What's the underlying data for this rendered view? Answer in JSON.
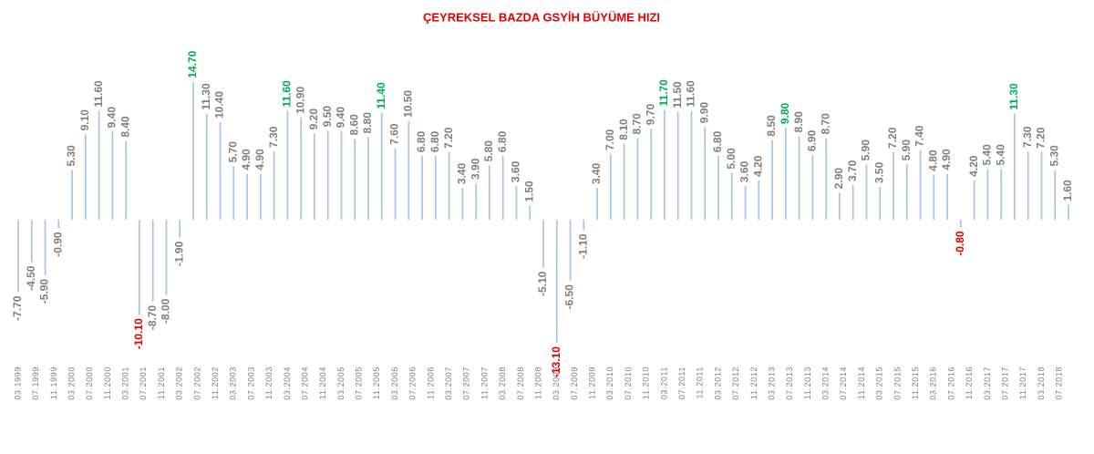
{
  "chart_data": {
    "type": "bar",
    "title": "ÇEYREKSEL BAZDA GSYİH BÜYÜME HIZI",
    "values": [
      -7.7,
      -4.5,
      -5.9,
      -0.9,
      5.3,
      9.1,
      11.6,
      9.4,
      8.4,
      -10.1,
      -8.7,
      -8.0,
      -1.9,
      14.7,
      11.3,
      10.4,
      5.7,
      4.9,
      4.9,
      7.3,
      11.6,
      10.9,
      9.2,
      9.5,
      9.4,
      8.6,
      8.8,
      11.4,
      7.6,
      10.5,
      6.8,
      6.8,
      7.2,
      3.4,
      3.9,
      5.8,
      6.8,
      3.6,
      1.5,
      -5.1,
      -13.1,
      -6.5,
      -1.1,
      3.4,
      7.0,
      8.1,
      8.7,
      9.7,
      11.7,
      11.5,
      11.6,
      9.9,
      6.8,
      5.0,
      3.6,
      4.2,
      8.5,
      9.8,
      8.9,
      6.9,
      8.7,
      2.9,
      3.7,
      5.9,
      3.5,
      7.2,
      5.9,
      7.4,
      4.8,
      4.9,
      -0.8,
      4.2,
      5.4,
      5.4,
      11.3,
      7.3,
      7.2,
      5.3,
      1.6
    ],
    "value_labels": [
      "-7.70",
      "-4.50",
      "-5.90",
      "-0.90",
      "5.30",
      "9.10",
      "11.60",
      "9.40",
      "8.40",
      "-10.10",
      "-8.70",
      "-8.00",
      "-1.90",
      "14.70",
      "11.30",
      "10.40",
      "5.70",
      "4.90",
      "4.90",
      "7.30",
      "11.60",
      "10.90",
      "9.20",
      "9.50",
      "9.40",
      "8.60",
      "8.80",
      "11.40",
      "7.60",
      "10.50",
      "6.80",
      "6.80",
      "7.20",
      "3.40",
      "3.90",
      "5.80",
      "6.80",
      "3.60",
      "1.50",
      "-5.10",
      "-13.10",
      "-6.50",
      "-1.10",
      "3.40",
      "7.00",
      "8.10",
      "8.70",
      "9.70",
      "11.70",
      "11.50",
      "11.60",
      "9.90",
      "6.80",
      "5.00",
      "3.60",
      "4.20",
      "8.50",
      "9.80",
      "8.90",
      "6.90",
      "8.70",
      "2.90",
      "3.70",
      "5.90",
      "3.50",
      "7.20",
      "5.90",
      "7.40",
      "4.80",
      "4.90",
      "-0.80",
      "4.20",
      "5.40",
      "5.40",
      "11.30",
      "7.30",
      "7.20",
      "5.30",
      "1.60"
    ],
    "label_colors": [
      "#7f7f7f",
      "#7f7f7f",
      "#7f7f7f",
      "#7f7f7f",
      "#7f7f7f",
      "#7f7f7f",
      "#7f7f7f",
      "#7f7f7f",
      "#7f7f7f",
      "#e00000",
      "#7f7f7f",
      "#7f7f7f",
      "#7f7f7f",
      "#00b050",
      "#7f7f7f",
      "#7f7f7f",
      "#7f7f7f",
      "#7f7f7f",
      "#7f7f7f",
      "#7f7f7f",
      "#00b050",
      "#7f7f7f",
      "#7f7f7f",
      "#7f7f7f",
      "#7f7f7f",
      "#7f7f7f",
      "#7f7f7f",
      "#00b050",
      "#7f7f7f",
      "#7f7f7f",
      "#7f7f7f",
      "#7f7f7f",
      "#7f7f7f",
      "#7f7f7f",
      "#7f7f7f",
      "#7f7f7f",
      "#7f7f7f",
      "#7f7f7f",
      "#7f7f7f",
      "#7f7f7f",
      "#e00000",
      "#7f7f7f",
      "#7f7f7f",
      "#7f7f7f",
      "#7f7f7f",
      "#7f7f7f",
      "#7f7f7f",
      "#7f7f7f",
      "#00b050",
      "#7f7f7f",
      "#7f7f7f",
      "#7f7f7f",
      "#7f7f7f",
      "#7f7f7f",
      "#7f7f7f",
      "#7f7f7f",
      "#7f7f7f",
      "#00b050",
      "#7f7f7f",
      "#7f7f7f",
      "#7f7f7f",
      "#7f7f7f",
      "#7f7f7f",
      "#7f7f7f",
      "#7f7f7f",
      "#7f7f7f",
      "#7f7f7f",
      "#7f7f7f",
      "#7f7f7f",
      "#7f7f7f",
      "#e00000",
      "#7f7f7f",
      "#7f7f7f",
      "#7f7f7f",
      "#00b050",
      "#7f7f7f",
      "#7f7f7f",
      "#7f7f7f",
      "#7f7f7f"
    ],
    "xticks": [
      "03.1999",
      "07.1999",
      "11.1999",
      "03.2000",
      "07.2000",
      "11.2000",
      "03.2001",
      "07.2001",
      "11.2001",
      "03.2002",
      "07.2002",
      "11.2002",
      "03.2003",
      "07.2003",
      "11.2003",
      "03.2004",
      "07.2004",
      "11.2004",
      "03.2005",
      "07.2005",
      "11.2005",
      "03.2006",
      "07.2006",
      "11.2006",
      "03.2007",
      "07.2007",
      "11.2007",
      "03.2008",
      "07.2008",
      "11.2008",
      "03.2009",
      "07.2009",
      "11.2009",
      "03.2010",
      "07.2010",
      "11.2010",
      "03.2011",
      "07.2011",
      "11.2011",
      "03.2012",
      "07.2012",
      "11.2012",
      "03.2013",
      "07.2013",
      "11.2013",
      "03.2014",
      "07.2014",
      "11.2014",
      "03.2015",
      "07.2015",
      "11.2015",
      "03.2016",
      "07.2016",
      "11.2016",
      "03.2017",
      "07.2017",
      "11.2017",
      "03.2018",
      "07.2018"
    ],
    "color": "#9dc3e6",
    "ylim": [
      -16,
      17
    ]
  }
}
